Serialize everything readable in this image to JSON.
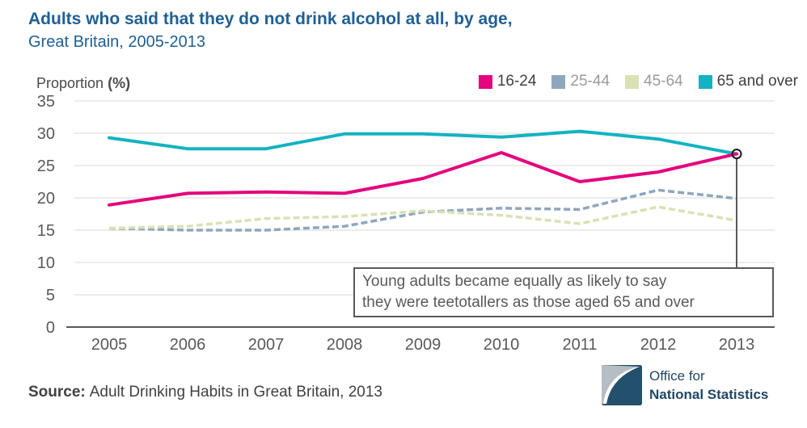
{
  "header": {
    "title": "Adults who said that they do not drink alcohol at all, by age,",
    "subtitle": "Great Britain, 2005-2013",
    "title_color": "#206095"
  },
  "y_axis_unit": {
    "text": "Proportion",
    "unit": "(%)"
  },
  "legend": {
    "items": [
      {
        "label": "16-24",
        "swatch_color": "#e4047c",
        "label_color": "#404040"
      },
      {
        "label": "25-44",
        "swatch_color": "#8fa6bd",
        "label_color": "#9b9b9b"
      },
      {
        "label": "45-64",
        "swatch_color": "#d8e2b4",
        "label_color": "#9b9b9b"
      },
      {
        "label": "65 and over",
        "swatch_color": "#13b3c0",
        "label_color": "#404040"
      }
    ]
  },
  "chart_data": {
    "type": "line",
    "title": "Adults who said that they do not drink alcohol at all, by age, Great Britain, 2005-2013",
    "xlabel": "",
    "ylabel": "Proportion (%)",
    "ylim": [
      0,
      35
    ],
    "yticks": [
      0,
      5,
      10,
      15,
      20,
      25,
      30,
      35
    ],
    "grid": true,
    "legend_position": "top-right",
    "categories": [
      "2005",
      "2006",
      "2007",
      "2008",
      "2009",
      "2010",
      "2011",
      "2012",
      "2013"
    ],
    "series": [
      {
        "name": "25-44",
        "color": "#8fa6bd",
        "style": "dashed",
        "values": [
          15.3,
          15.0,
          15.0,
          15.6,
          17.8,
          18.4,
          18.2,
          21.2,
          19.9
        ]
      },
      {
        "name": "45-64",
        "color": "#d8e2b4",
        "style": "dashed",
        "values": [
          15.3,
          15.6,
          16.8,
          17.1,
          18.0,
          17.3,
          16.0,
          18.6,
          16.5
        ]
      },
      {
        "name": "65 and over",
        "color": "#13b3c0",
        "style": "solid",
        "values": [
          29.3,
          27.6,
          27.6,
          29.9,
          29.9,
          29.4,
          30.3,
          29.1,
          26.8
        ]
      },
      {
        "name": "16-24",
        "color": "#e4047c",
        "style": "solid",
        "values": [
          18.9,
          20.7,
          20.9,
          20.7,
          23.0,
          27.0,
          22.5,
          24.0,
          26.8
        ]
      }
    ],
    "annotation": {
      "lines": [
        "Young adults became equally as likely to say",
        "they were teetotallers as those aged 65 and over"
      ],
      "marker": {
        "category": "2013",
        "value": 26.8
      }
    }
  },
  "footer": {
    "source_label": "Source:",
    "source_text": "Adult Drinking Habits in Great Britain, 2013"
  },
  "logo": {
    "line1": "Office for",
    "line2": "National Statistics"
  }
}
